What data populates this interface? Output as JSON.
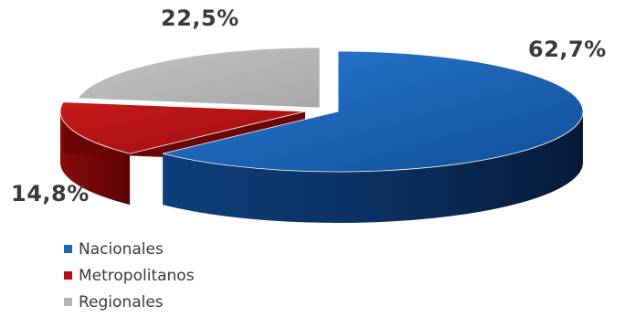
{
  "chart_data": {
    "type": "pie",
    "title": "",
    "categories": [
      "Nacionales",
      "Metropolitanos",
      "Regionales"
    ],
    "values": [
      62.7,
      14.8,
      22.5
    ],
    "value_labels": [
      "62,7%",
      "14,8%",
      "22,5%"
    ],
    "colors": [
      "#1b66b8",
      "#b81010",
      "#b4b4b4"
    ],
    "three_d": true,
    "exploded_slice": "Nacionales",
    "legend_position": "bottom-left"
  }
}
